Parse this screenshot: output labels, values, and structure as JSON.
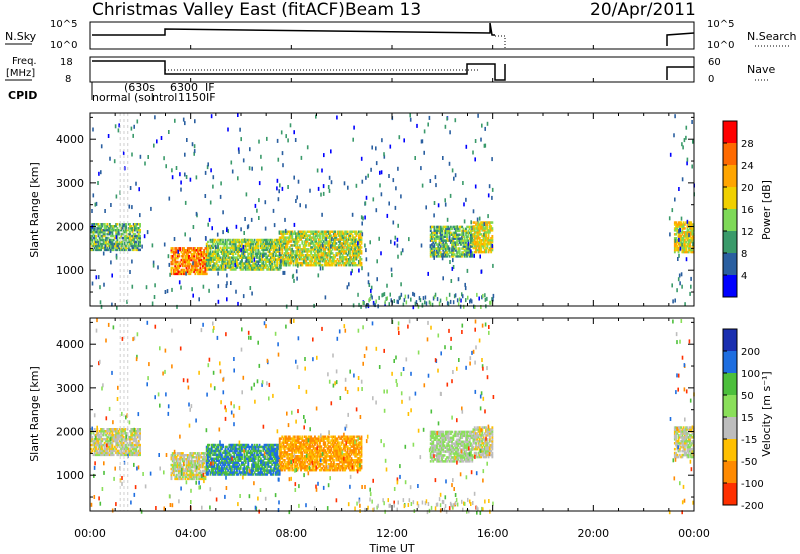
{
  "header": {
    "title": "Christmas Valley East (fitACF)",
    "beam": "Beam 13",
    "date": "20/Apr/2011"
  },
  "panels": {
    "nsky": {
      "left_label": "N.Sky",
      "right_label": "N.Search",
      "ticks_left": [
        "10^5",
        "10^0"
      ],
      "ticks_right": [
        "10^5",
        "10^0"
      ]
    },
    "freq": {
      "left_label_1": "Freq.",
      "left_label_2": "[MHz]",
      "right_label": "Nave",
      "ticks_left": [
        "18",
        "8"
      ],
      "ticks_right": [
        "60",
        "0"
      ]
    },
    "cpid": {
      "label": "CPID",
      "entries": [
        "normal",
        "(630s",
        "(sol",
        "6300",
        "IF",
        "ntrol",
        "1150",
        "IF"
      ]
    }
  },
  "axes": {
    "ylabel": "Slant Range [km]",
    "xlabel": "Time UT",
    "yticks": [
      "4000",
      "3000",
      "2000",
      "1000"
    ],
    "xticks": [
      "00:00",
      "04:00",
      "08:00",
      "12:00",
      "16:00",
      "20:00",
      "00:00"
    ]
  },
  "colorbars": {
    "power": {
      "label": "Power [dB]",
      "ticks": [
        "28",
        "24",
        "20",
        "16",
        "12",
        "8",
        "4"
      ],
      "colors": [
        "#ff0000",
        "#ff6a00",
        "#ffa500",
        "#f0d000",
        "#7ed957",
        "#3a9a6a",
        "#2a5fa0",
        "#0000ff"
      ]
    },
    "velocity": {
      "label": "Velocity [m s⁻¹]",
      "ticks": [
        "200",
        "100",
        "50",
        "15",
        "-15",
        "-50",
        "-100",
        "-200"
      ],
      "colors": [
        "#1a2fb0",
        "#1e6ee0",
        "#4cbf3c",
        "#8adf5a",
        "#bdbdbd",
        "#ffc000",
        "#ff8a00",
        "#ff3000"
      ]
    }
  },
  "chart_data": [
    {
      "type": "heatmap",
      "title": "Power",
      "xlabel": "Time UT",
      "ylabel": "Slant Range [km]",
      "xlim": [
        0,
        24
      ],
      "ylim": [
        180,
        4600
      ],
      "colorbar": "power",
      "regions": [
        {
          "t": [
            0.0,
            2.0
          ],
          "r": [
            1450,
            2050
          ],
          "level": 12
        },
        {
          "t": [
            3.2,
            4.6
          ],
          "r": [
            900,
            1500
          ],
          "level": 24
        },
        {
          "t": [
            4.6,
            7.5
          ],
          "r": [
            1000,
            1700
          ],
          "level": 14
        },
        {
          "t": [
            7.5,
            10.8
          ],
          "r": [
            1100,
            1900
          ],
          "level": 16
        },
        {
          "t": [
            13.5,
            15.2
          ],
          "r": [
            1300,
            2000
          ],
          "level": 12
        },
        {
          "t": [
            15.2,
            16.0
          ],
          "r": [
            1400,
            2100
          ],
          "level": 18
        },
        {
          "t": [
            23.2,
            24.0
          ],
          "r": [
            1400,
            2100
          ],
          "level": 18
        }
      ]
    },
    {
      "type": "heatmap",
      "title": "Velocity",
      "xlabel": "Time UT",
      "ylabel": "Slant Range [km]",
      "xlim": [
        0,
        24
      ],
      "ylim": [
        180,
        4600
      ],
      "colorbar": "velocity",
      "regions": [
        {
          "t": [
            0.0,
            2.0
          ],
          "r": [
            1450,
            2050
          ],
          "level": 0
        },
        {
          "t": [
            3.2,
            4.6
          ],
          "r": [
            900,
            1500
          ],
          "level": 0
        },
        {
          "t": [
            4.6,
            7.5
          ],
          "r": [
            1000,
            1700
          ],
          "level": 100
        },
        {
          "t": [
            7.5,
            10.8
          ],
          "r": [
            1100,
            1900
          ],
          "level": -50
        },
        {
          "t": [
            13.5,
            15.2
          ],
          "r": [
            1300,
            2000
          ],
          "level": 15
        },
        {
          "t": [
            15.2,
            16.0
          ],
          "r": [
            1400,
            2100
          ],
          "level": 0
        },
        {
          "t": [
            23.2,
            24.0
          ],
          "r": [
            1400,
            2100
          ],
          "level": 0
        }
      ]
    }
  ]
}
